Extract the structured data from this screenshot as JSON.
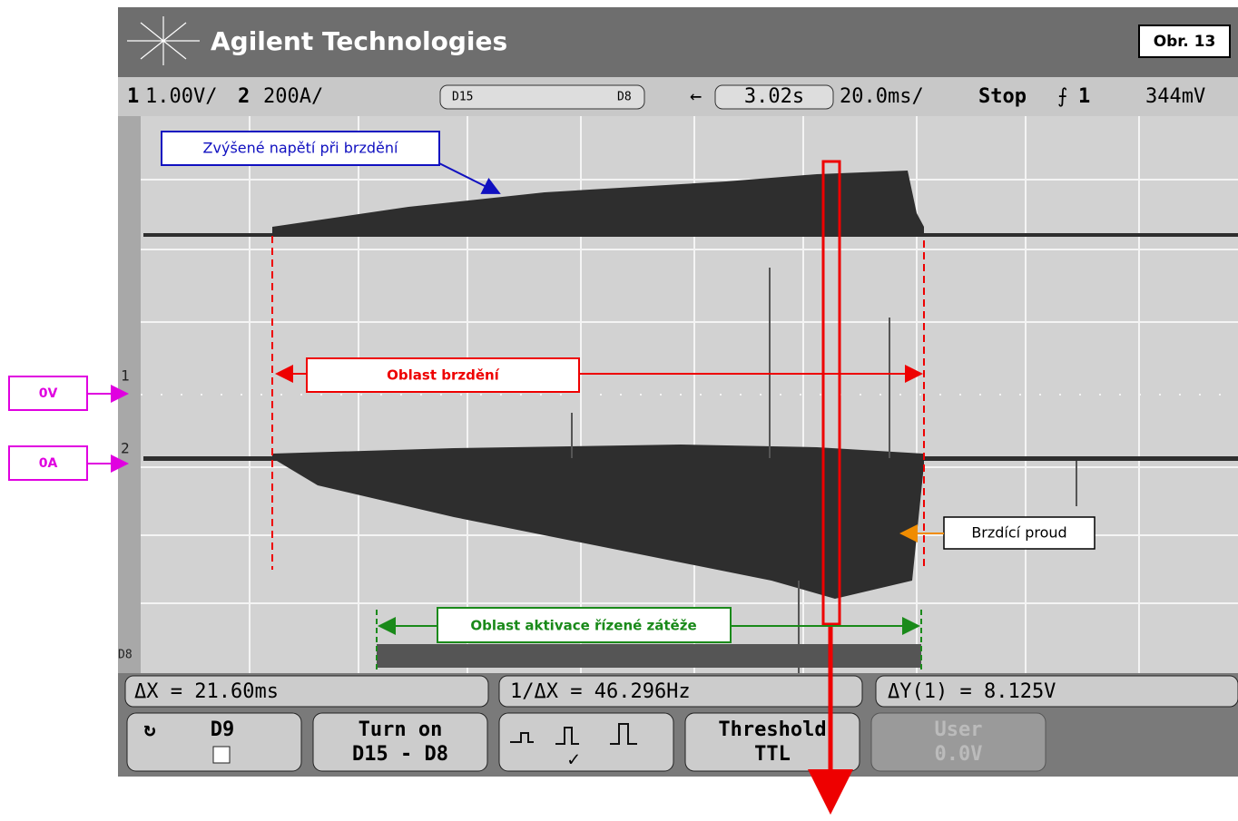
{
  "header": {
    "brand": "Agilent Technologies",
    "figure_label": "Obr. 13"
  },
  "status_bar": {
    "ch1": "1",
    "ch1_scale": "1.00V/",
    "ch2": "2",
    "ch2_scale": "200A/",
    "digital_from": "D15",
    "digital_to": "D8",
    "delay": "3.02s",
    "timebase": "20.0ms/",
    "run_state": "Stop",
    "trigger_source": "1",
    "trigger_level": "344mV"
  },
  "markers": {
    "ch1": "1",
    "ch2": "2",
    "digital": "D8"
  },
  "annotations": {
    "voltage": "Zvýšené napětí při brzdění",
    "braking_region": "Oblast brzdění",
    "current": "Brzdící proud",
    "load_region": "Oblast aktivace řízené zátěže",
    "zero_voltage": "0V",
    "zero_current": "0A"
  },
  "measurements": {
    "delta_x": "ΔX = 21.60ms",
    "inverse_delta_x": "1/ΔX = 46.296Hz",
    "delta_y": "ΔY(1) = 8.125V"
  },
  "softkeys": {
    "channel": "D9",
    "turn_on": "Turn on",
    "turn_on_range": "D15 - D8",
    "threshold": "Threshold",
    "threshold_value": "TTL",
    "user": "User",
    "user_value": "0.0V"
  }
}
